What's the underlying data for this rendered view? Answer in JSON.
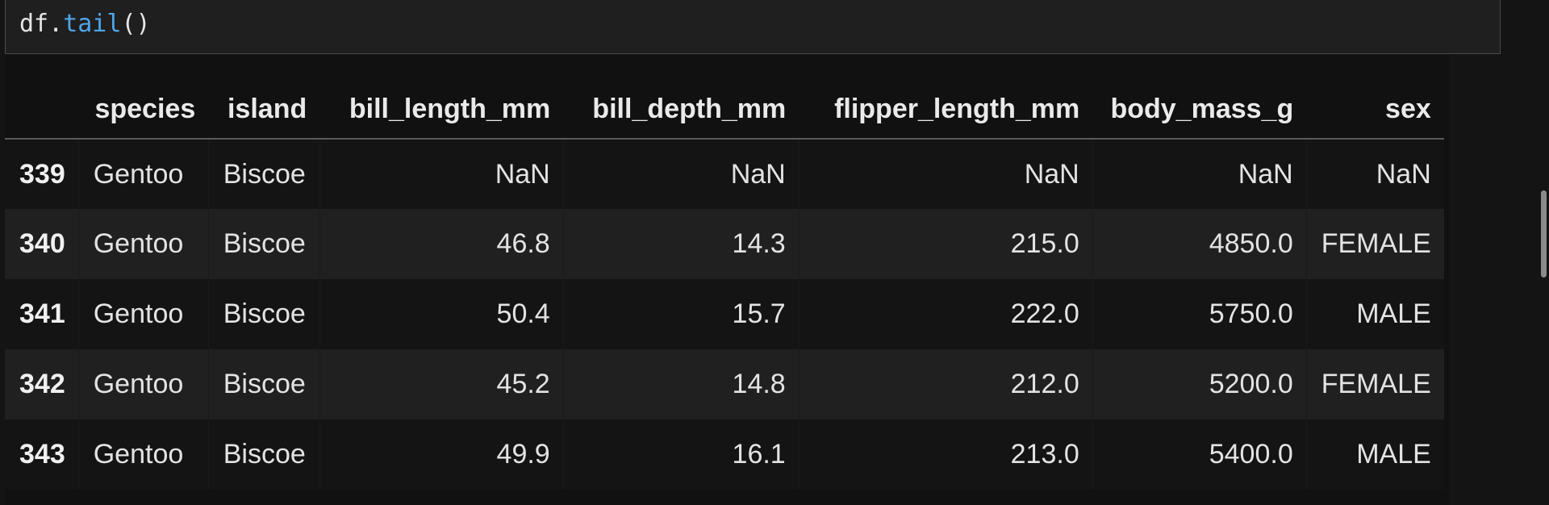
{
  "cell": {
    "code_object": "df",
    "code_dot": ".",
    "code_method": "tail",
    "code_parens": "()"
  },
  "table": {
    "columns": [
      "",
      "species",
      "island",
      "bill_length_mm",
      "bill_depth_mm",
      "flipper_length_mm",
      "body_mass_g",
      "sex"
    ],
    "rows": [
      {
        "index": "339",
        "species": "Gentoo",
        "island": "Biscoe",
        "bill_length_mm": "NaN",
        "bill_depth_mm": "NaN",
        "flipper_length_mm": "NaN",
        "body_mass_g": "NaN",
        "sex": "NaN"
      },
      {
        "index": "340",
        "species": "Gentoo",
        "island": "Biscoe",
        "bill_length_mm": "46.8",
        "bill_depth_mm": "14.3",
        "flipper_length_mm": "215.0",
        "body_mass_g": "4850.0",
        "sex": "FEMALE"
      },
      {
        "index": "341",
        "species": "Gentoo",
        "island": "Biscoe",
        "bill_length_mm": "50.4",
        "bill_depth_mm": "15.7",
        "flipper_length_mm": "222.0",
        "body_mass_g": "5750.0",
        "sex": "MALE"
      },
      {
        "index": "342",
        "species": "Gentoo",
        "island": "Biscoe",
        "bill_length_mm": "45.2",
        "bill_depth_mm": "14.8",
        "flipper_length_mm": "212.0",
        "body_mass_g": "5200.0",
        "sex": "FEMALE"
      },
      {
        "index": "343",
        "species": "Gentoo",
        "island": "Biscoe",
        "bill_length_mm": "49.9",
        "bill_depth_mm": "16.1",
        "flipper_length_mm": "213.0",
        "body_mass_g": "5400.0",
        "sex": "MALE"
      }
    ]
  }
}
